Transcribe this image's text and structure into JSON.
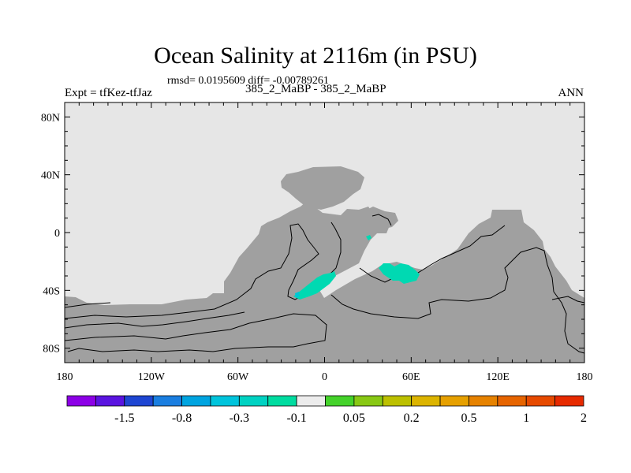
{
  "header": {
    "title": "Ocean Salinity at 2116m (in PSU)",
    "stats": "rmsd= 0.0195609 diff= -0.00789261",
    "subtitle": "385_2_MaBP - 385_2_MaBP",
    "expt": "Expt = tfKez-tfJaz",
    "season": "ANN"
  },
  "map": {
    "projection": "cylindrical-equidistant",
    "lon_range": [
      -180,
      180
    ],
    "lat_range": [
      -90,
      90
    ],
    "x_ticks": [
      {
        "lon": -180,
        "label": "180"
      },
      {
        "lon": -120,
        "label": "120W"
      },
      {
        "lon": -60,
        "label": "60W"
      },
      {
        "lon": 0,
        "label": "0"
      },
      {
        "lon": 60,
        "label": "60E"
      },
      {
        "lon": 120,
        "label": "120E"
      },
      {
        "lon": 180,
        "label": "180"
      }
    ],
    "y_ticks": [
      {
        "lat": 80,
        "label": "80N"
      },
      {
        "lat": 40,
        "label": "40N"
      },
      {
        "lat": 0,
        "label": "0"
      },
      {
        "lat": -40,
        "label": "40S"
      },
      {
        "lat": -80,
        "label": "80S"
      }
    ],
    "land_color": "#e6e6e6",
    "ocean_color": "#a0a0a0",
    "anomaly_color": "#00d9b2",
    "anomaly_color_edge": "#00c6d6"
  },
  "colorbar": {
    "colors": [
      "#8c00e6",
      "#5a14e0",
      "#1e46d2",
      "#1a7ee0",
      "#00a4e0",
      "#00c4dc",
      "#00d2c2",
      "#00dca0",
      "#ececec",
      "#44d22a",
      "#88c814",
      "#bcc000",
      "#dcb400",
      "#e6a000",
      "#e68200",
      "#e66400",
      "#e64a00",
      "#e62a00"
    ],
    "labels": [
      "-1.5",
      "-0.8",
      "-0.3",
      "-0.1",
      "0.05",
      "0.2",
      "0.5",
      "1",
      "2"
    ]
  }
}
